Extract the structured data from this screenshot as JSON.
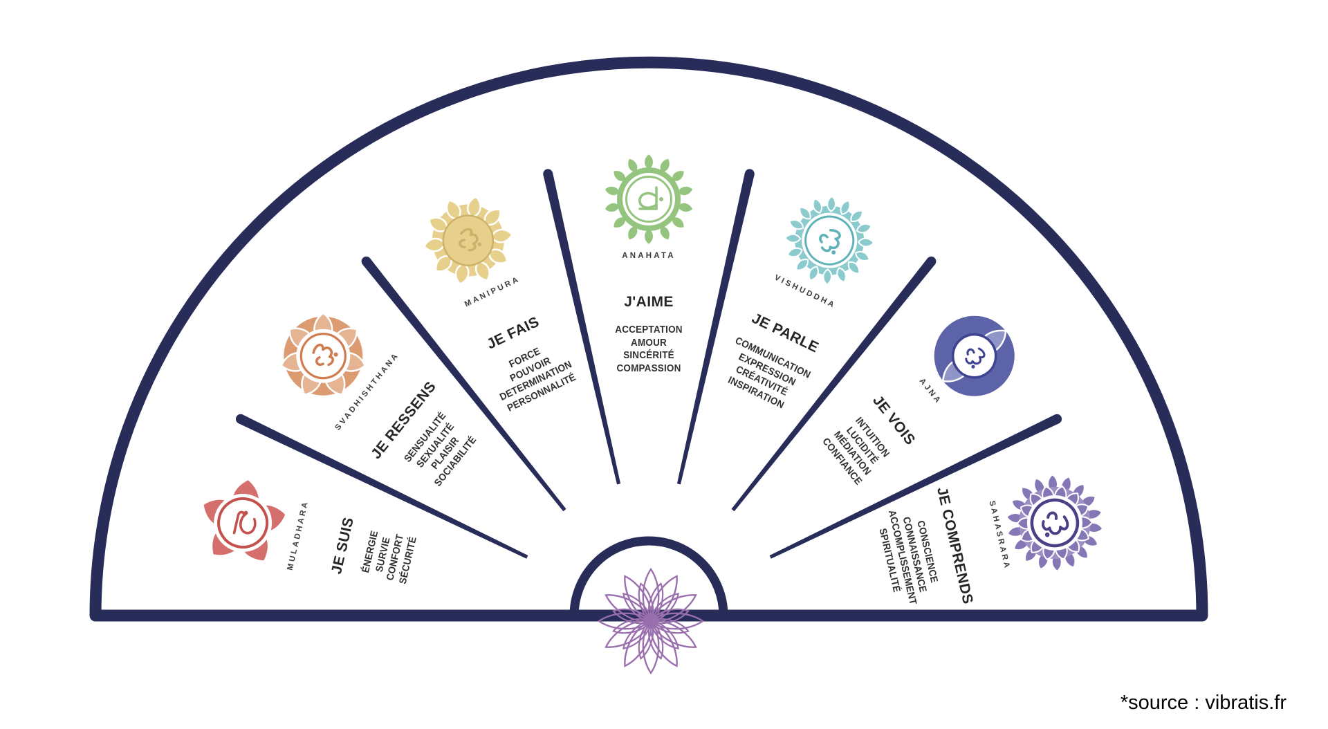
{
  "source_note": "*source : vibratis.fr",
  "wheel": {
    "outline_color": "#282c59",
    "lotus_color": "#9a6fae",
    "segments": [
      {
        "name": "MULADHARA",
        "affirmation": "JE SUIS",
        "keywords": [
          "ÉNERGIE",
          "SURVIE",
          "CONFORT",
          "SÉCURITÉ"
        ],
        "color": "#d46f6d",
        "color_light": "#dd8a87",
        "color_dark": "#c4514e"
      },
      {
        "name": "SVADHISHTHANA",
        "affirmation": "JE RESSENS",
        "keywords": [
          "SENSUALITÉ",
          "SEXUALITÉ",
          "PLAISIR",
          "SOCIABILITÉ"
        ],
        "color": "#dd9b72",
        "color_light": "#e5b492",
        "color_dark": "#cf7c4e"
      },
      {
        "name": "MANIPURA",
        "affirmation": "JE FAIS",
        "keywords": [
          "FORCE",
          "POUVOIR",
          "DETERMINATION",
          "PERSONNALITÉ"
        ],
        "color": "#e7cf8c",
        "color_light": "#eeddab",
        "color_dark": "#cdb167"
      },
      {
        "name": "ANAHATA",
        "affirmation": "J'AIME",
        "keywords": [
          "ACCEPTATION",
          "AMOUR",
          "SINCÉRITÉ",
          "COMPASSION"
        ],
        "color": "#94c47e",
        "color_light": "#aed39c",
        "color_dark": "#74ab5d"
      },
      {
        "name": "VISHUDDHA",
        "affirmation": "JE PARLE",
        "keywords": [
          "COMMUNICATION",
          "EXPRESSION",
          "CRÉATIVITÉ",
          "INSPIRATION"
        ],
        "color": "#8bcbce",
        "color_light": "#a8d9db",
        "color_dark": "#5fb3b8"
      },
      {
        "name": "AJNA",
        "affirmation": "JE VOIS",
        "keywords": [
          "INTUITION",
          "LUCIDITÉ",
          "MÉDIATION",
          "CONFIANCE"
        ],
        "color": "#5c63a8",
        "color_light": "#9095c7",
        "color_dark": "#3d4390"
      },
      {
        "name": "SAHASRARA",
        "affirmation": "JE COMPRENDS",
        "keywords": [
          "CONSCIENCE",
          "CONNAISSANCE",
          "ACCOMPLISSEMENT",
          "SPIRITUALITÉ"
        ],
        "color": "#8577b6",
        "color_light": "#9b8fc4",
        "color_dark": "#4b3f86"
      }
    ]
  }
}
